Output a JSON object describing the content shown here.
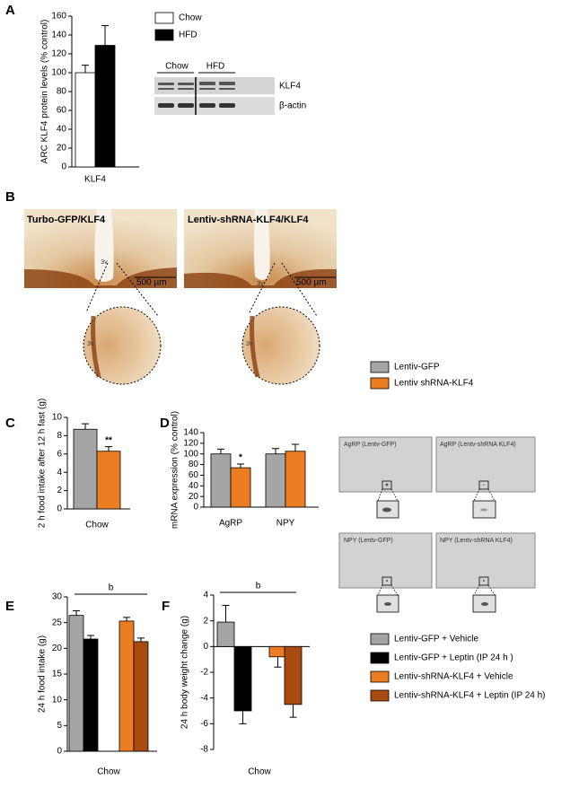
{
  "figure": {
    "panel_letters": [
      "A",
      "B",
      "C",
      "D",
      "E",
      "F"
    ],
    "blot": {
      "groups": [
        "Chow",
        "HFD"
      ],
      "bands": [
        "KLF4",
        "β-actin"
      ]
    },
    "micrographs": [
      {
        "label": "Turbo-GFP/KLF4",
        "ventricle": "3v",
        "scale": "500 µm",
        "inset_ventricle": "3v"
      },
      {
        "label": "Lentiv-shRNA-KLF4/KLF4",
        "ventricle": "3v",
        "scale": "500 µm",
        "inset_ventricle": "3v"
      }
    ],
    "in_situ": [
      "AgRP (Lentv-GFP)",
      "AgRP (Lentv-shRNA KLF4)",
      "NPY (Lentv-GFP)",
      "NPY (Lentv-shRNA KLF4)"
    ]
  },
  "chart_data": [
    {
      "type": "bar",
      "y_label": "ARC KLF4 protein levels (% control)",
      "categories": [
        "KLF4"
      ],
      "series": [
        {
          "name": "Chow",
          "color": "#ffffff",
          "values": [
            100
          ],
          "errors": [
            8
          ]
        },
        {
          "name": "HFD",
          "color": "#000000",
          "values": [
            129
          ],
          "errors": [
            21
          ]
        }
      ],
      "ylim": [
        0,
        160
      ],
      "yticks": [
        0,
        20,
        40,
        60,
        80,
        100,
        120,
        140,
        160
      ]
    },
    {
      "type": "bar",
      "y_label": "2 h food  intake after 12 h fast (g)",
      "categories": [
        "Chow"
      ],
      "series": [
        {
          "name": "Lentiv-GFP",
          "color": "#a5a5a5",
          "values": [
            8.7
          ],
          "errors": [
            0.6
          ]
        },
        {
          "name": "Lentiv shRNA-KLF4",
          "color": "#ed7d22",
          "values": [
            6.3
          ],
          "errors": [
            0.5
          ]
        }
      ],
      "ylim": [
        0,
        10
      ],
      "yticks": [
        0,
        2,
        4,
        6,
        8,
        10
      ],
      "annotation": "**"
    },
    {
      "type": "bar",
      "y_label": "mRNA expression (% control)",
      "categories": [
        "AgRP",
        "NPY"
      ],
      "series": [
        {
          "color": "#a5a5a5",
          "values": [
            100,
            100
          ],
          "errors": [
            9,
            10
          ]
        },
        {
          "color": "#ed7d22",
          "values": [
            74,
            105
          ],
          "errors": [
            7,
            13
          ]
        }
      ],
      "ylim": [
        0,
        140
      ],
      "yticks": [
        0,
        20,
        40,
        60,
        80,
        100,
        120,
        140
      ],
      "annotation": "*"
    },
    {
      "type": "bar",
      "y_label": "24 h food intake (g)",
      "categories": [
        "Chow"
      ],
      "series": [
        {
          "name": "Lentiv-GFP + Vehicle",
          "color": "#a5a5a5",
          "values": [
            26.4
          ],
          "errors": [
            0.9
          ]
        },
        {
          "name": "Lentiv-GFP + Leptin (IP 24 h )",
          "color": "#000000",
          "values": [
            21.8
          ],
          "errors": [
            0.7
          ]
        },
        {
          "name": "Lentiv-shRNA-KLF4 + Vehicle",
          "color": "#ed7d22",
          "values": [
            25.3
          ],
          "errors": [
            0.7
          ]
        },
        {
          "name": "Lentiv-shRNA-KLF4 + Leptin (IP 24 h)",
          "color": "#a94b10",
          "values": [
            21.3
          ],
          "errors": [
            0.7
          ]
        }
      ],
      "ylim": [
        0,
        30
      ],
      "yticks": [
        0,
        5,
        10,
        15,
        20,
        25,
        30
      ],
      "bracket_label": "b"
    },
    {
      "type": "bar",
      "y_label": "24 h body weight change (g)",
      "categories": [
        "Chow"
      ],
      "series": [
        {
          "color": "#a5a5a5",
          "values": [
            1.9
          ],
          "errors": [
            1.3
          ]
        },
        {
          "color": "#000000",
          "values": [
            -5
          ],
          "errors": [
            1
          ]
        },
        {
          "color": "#ed7d22",
          "values": [
            -0.8
          ],
          "errors": [
            0.8
          ]
        },
        {
          "color": "#a94b10",
          "values": [
            -4.5
          ],
          "errors": [
            1
          ]
        }
      ],
      "ylim": [
        -8,
        4
      ],
      "yticks": [
        -8,
        -6,
        -4,
        -2,
        0,
        2,
        4
      ],
      "bracket_label": "b"
    }
  ]
}
